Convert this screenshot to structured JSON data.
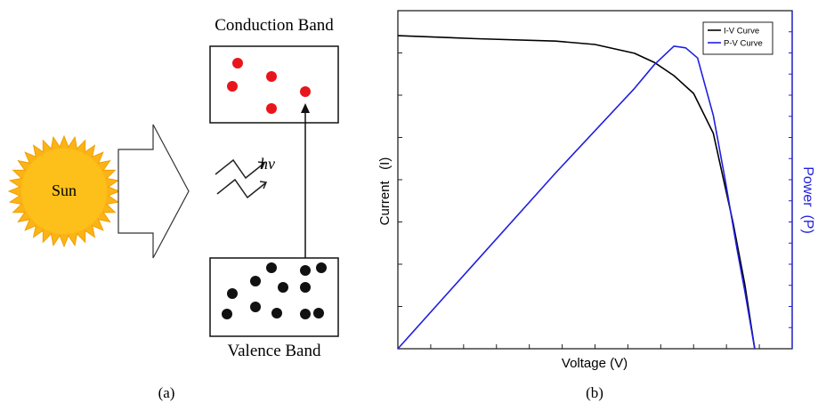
{
  "figure": {
    "panel_a": {
      "sun": "Sun",
      "conduction_band": "Conduction Band",
      "photon": "hν",
      "valence_band": "Valence Band",
      "caption": "(a)"
    },
    "panel_b": {
      "caption": "(b)"
    }
  },
  "chart_data": {
    "type": "line",
    "x_label": "Voltage (V)",
    "y_label": "Current   (I)",
    "y2_label": "Power  (P)",
    "xlim": [
      0,
      10
    ],
    "ylim": [
      0,
      10
    ],
    "y2lim": [
      0,
      10
    ],
    "legend": "upper right",
    "series": [
      {
        "name": "I-V Curve",
        "color": "#000000",
        "x": [
          0,
          2,
          4,
          5,
          6,
          6.5,
          7,
          7.5,
          8,
          8.5,
          8.8,
          9.05
        ],
        "values": [
          9.26,
          9.17,
          9.1,
          9.0,
          8.74,
          8.47,
          8.08,
          7.55,
          6.37,
          3.74,
          1.9,
          0
        ]
      },
      {
        "name": "P-V Curve",
        "color": "#1f1fe0",
        "axis": "y2",
        "x": [
          0,
          2,
          4,
          6,
          6.5,
          7,
          7.3,
          7.6,
          8,
          8.3,
          8.6,
          8.8,
          9.05
        ],
        "values": [
          0,
          2.6,
          5.2,
          7.7,
          8.4,
          8.95,
          8.9,
          8.6,
          6.9,
          5.0,
          2.95,
          1.7,
          0
        ]
      }
    ]
  }
}
